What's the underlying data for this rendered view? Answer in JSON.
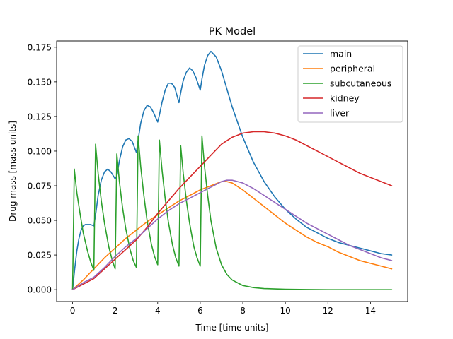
{
  "chart_data": {
    "type": "line",
    "title": "PK Model",
    "xlabel": "Time [time units]",
    "ylabel": "Drug mass [mass units]",
    "xlim": [
      -0.75,
      15.75
    ],
    "ylim": [
      -0.0086,
      0.1795
    ],
    "xticks": [
      0,
      2,
      4,
      6,
      8,
      10,
      12,
      14
    ],
    "yticks": [
      0.0,
      0.025,
      0.05,
      0.075,
      0.1,
      0.125,
      0.15,
      0.175
    ],
    "ytick_labels": [
      "0.000",
      "0.025",
      "0.050",
      "0.075",
      "0.100",
      "0.125",
      "0.150",
      "0.175"
    ],
    "grid": false,
    "legend_position": "upper right",
    "series": [
      {
        "name": "main",
        "color": "#1f77b4",
        "x": [
          0,
          0.1,
          0.2,
          0.3,
          0.4,
          0.5,
          0.6,
          0.7,
          0.85,
          1.0,
          1.1,
          1.2,
          1.35,
          1.5,
          1.65,
          1.8,
          2.0,
          2.08,
          2.2,
          2.35,
          2.5,
          2.65,
          2.8,
          3.0,
          3.1,
          3.2,
          3.35,
          3.5,
          3.65,
          3.8,
          4.0,
          4.08,
          4.2,
          4.35,
          4.5,
          4.65,
          4.8,
          5.0,
          5.08,
          5.2,
          5.35,
          5.5,
          5.65,
          5.8,
          6.0,
          6.08,
          6.2,
          6.35,
          6.5,
          6.75,
          7.0,
          7.5,
          8.0,
          8.5,
          9.0,
          9.5,
          10.0,
          10.5,
          11.0,
          11.5,
          12.0,
          12.5,
          13.0,
          13.5,
          14.0,
          14.5,
          15.0
        ],
        "y": [
          0,
          0.015,
          0.028,
          0.037,
          0.043,
          0.046,
          0.047,
          0.047,
          0.047,
          0.046,
          0.056,
          0.068,
          0.079,
          0.085,
          0.087,
          0.085,
          0.08,
          0.082,
          0.093,
          0.103,
          0.108,
          0.109,
          0.107,
          0.099,
          0.11,
          0.12,
          0.129,
          0.133,
          0.132,
          0.128,
          0.121,
          0.126,
          0.135,
          0.144,
          0.149,
          0.149,
          0.146,
          0.135,
          0.142,
          0.151,
          0.157,
          0.16,
          0.158,
          0.153,
          0.144,
          0.152,
          0.162,
          0.169,
          0.172,
          0.168,
          0.158,
          0.132,
          0.11,
          0.092,
          0.078,
          0.067,
          0.058,
          0.051,
          0.045,
          0.041,
          0.037,
          0.034,
          0.032,
          0.03,
          0.028,
          0.026,
          0.025
        ]
      },
      {
        "name": "peripheral",
        "color": "#ff7f0e",
        "x": [
          0,
          0.5,
          1.0,
          1.5,
          2.0,
          2.5,
          3.0,
          3.5,
          4.0,
          4.5,
          5.0,
          5.5,
          6.0,
          6.5,
          7.0,
          7.25,
          7.5,
          8.0,
          8.5,
          9.0,
          9.5,
          10.0,
          10.5,
          11.0,
          11.5,
          12.0,
          12.5,
          13.0,
          13.5,
          14.0,
          14.5,
          15.0
        ],
        "y": [
          0,
          0.007,
          0.015,
          0.023,
          0.03,
          0.037,
          0.043,
          0.049,
          0.054,
          0.059,
          0.064,
          0.068,
          0.072,
          0.075,
          0.078,
          0.078,
          0.077,
          0.072,
          0.066,
          0.06,
          0.054,
          0.048,
          0.043,
          0.038,
          0.034,
          0.031,
          0.027,
          0.024,
          0.021,
          0.019,
          0.017,
          0.015
        ]
      },
      {
        "name": "subcutaneous",
        "color": "#2ca02c",
        "x": [
          0,
          0.08,
          0.2,
          0.35,
          0.5,
          0.7,
          0.85,
          1.0,
          1.08,
          1.2,
          1.35,
          1.5,
          1.7,
          1.85,
          2.0,
          2.08,
          2.2,
          2.35,
          2.5,
          2.7,
          2.85,
          3.0,
          3.08,
          3.2,
          3.35,
          3.5,
          3.7,
          3.85,
          4.0,
          4.08,
          4.2,
          4.35,
          4.5,
          4.7,
          4.85,
          5.0,
          5.08,
          5.2,
          5.35,
          5.5,
          5.7,
          5.85,
          6.0,
          6.08,
          6.2,
          6.35,
          6.5,
          6.75,
          7.0,
          7.25,
          7.5,
          8.0,
          8.5,
          9.0,
          10.0,
          11.0,
          12.0,
          13.0,
          14.0,
          15.0
        ],
        "y": [
          0,
          0.087,
          0.07,
          0.055,
          0.041,
          0.028,
          0.02,
          0.014,
          0.105,
          0.084,
          0.064,
          0.048,
          0.031,
          0.022,
          0.015,
          0.098,
          0.078,
          0.059,
          0.044,
          0.029,
          0.021,
          0.016,
          0.111,
          0.089,
          0.068,
          0.05,
          0.033,
          0.024,
          0.018,
          0.108,
          0.087,
          0.066,
          0.049,
          0.032,
          0.023,
          0.017,
          0.104,
          0.084,
          0.064,
          0.048,
          0.031,
          0.023,
          0.017,
          0.111,
          0.089,
          0.068,
          0.05,
          0.03,
          0.018,
          0.011,
          0.007,
          0.003,
          0.0015,
          0.0008,
          0.0003,
          0.0001,
          0.0,
          0.0,
          0.0,
          0.0
        ]
      },
      {
        "name": "kidney",
        "color": "#d62728",
        "x": [
          0,
          0.5,
          1.0,
          1.5,
          2.0,
          2.5,
          3.0,
          3.5,
          4.0,
          4.5,
          5.0,
          5.5,
          6.0,
          6.5,
          7.0,
          7.5,
          8.0,
          8.5,
          9.0,
          9.5,
          10.0,
          10.5,
          11.0,
          11.5,
          12.0,
          12.5,
          13.0,
          13.5,
          14.0,
          14.5,
          15.0
        ],
        "y": [
          0,
          0.004,
          0.008,
          0.015,
          0.022,
          0.029,
          0.036,
          0.045,
          0.055,
          0.064,
          0.073,
          0.081,
          0.089,
          0.097,
          0.105,
          0.11,
          0.113,
          0.114,
          0.114,
          0.113,
          0.111,
          0.108,
          0.104,
          0.1,
          0.096,
          0.092,
          0.088,
          0.084,
          0.081,
          0.078,
          0.075
        ]
      },
      {
        "name": "liver",
        "color": "#9467bd",
        "x": [
          0,
          0.5,
          1.0,
          1.5,
          2.0,
          2.5,
          3.0,
          3.5,
          4.0,
          4.5,
          5.0,
          5.5,
          6.0,
          6.5,
          7.0,
          7.25,
          7.5,
          8.0,
          8.5,
          9.0,
          9.5,
          10.0,
          10.5,
          11.0,
          11.5,
          12.0,
          12.5,
          13.0,
          13.5,
          14.0,
          14.5,
          15.0
        ],
        "y": [
          0,
          0.005,
          0.009,
          0.016,
          0.024,
          0.031,
          0.037,
          0.044,
          0.051,
          0.057,
          0.062,
          0.066,
          0.07,
          0.074,
          0.078,
          0.079,
          0.079,
          0.077,
          0.073,
          0.068,
          0.063,
          0.058,
          0.053,
          0.048,
          0.044,
          0.04,
          0.036,
          0.032,
          0.029,
          0.026,
          0.023,
          0.021
        ]
      }
    ]
  }
}
